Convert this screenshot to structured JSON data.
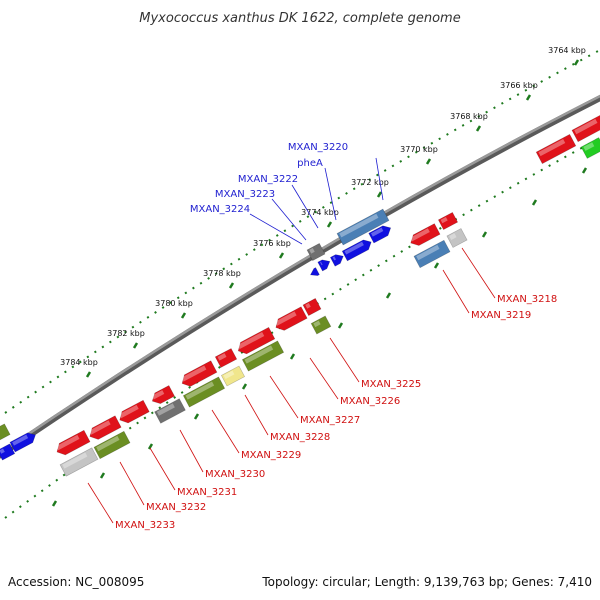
{
  "title": "Myxococcus xanthus DK 1622, complete genome",
  "footer": {
    "accession": "Accession: NC_008095",
    "stats": "Topology: circular; Length: 9,139,763 bp; Genes: 7,410"
  },
  "ticks": [
    {
      "label": "3764 kbp"
    },
    {
      "label": "3766 kbp"
    },
    {
      "label": "3768 kbp"
    },
    {
      "label": "3770 kbp"
    },
    {
      "label": "3772 kbp"
    },
    {
      "label": "3774 kbp"
    },
    {
      "label": "3776 kbp"
    },
    {
      "label": "3778 kbp"
    },
    {
      "label": "3780 kbp"
    },
    {
      "label": "3782 kbp"
    },
    {
      "label": "3784 kbp"
    }
  ],
  "labels_forward": [
    {
      "text": "MXAN_3220"
    },
    {
      "text": "pheA"
    },
    {
      "text": "MXAN_3222"
    },
    {
      "text": "MXAN_3223"
    },
    {
      "text": "MXAN_3224"
    }
  ],
  "labels_reverse": [
    {
      "text": "MXAN_3218"
    },
    {
      "text": "MXAN_3219"
    },
    {
      "text": "MXAN_3225"
    },
    {
      "text": "MXAN_3226"
    },
    {
      "text": "MXAN_3227"
    },
    {
      "text": "MXAN_3228"
    },
    {
      "text": "MXAN_3229"
    },
    {
      "text": "MXAN_3230"
    },
    {
      "text": "MXAN_3231"
    },
    {
      "text": "MXAN_3232"
    },
    {
      "text": "MXAN_3233"
    }
  ],
  "colors": {
    "backbone": "#7a7a7a",
    "tick_green": "#1f7a1f",
    "forward_label": "#1f1fd0",
    "reverse_label": "#d01010",
    "red": "#e0121a",
    "blue": "#1010e0",
    "steel": "#4a7fb5",
    "olive": "#6b8e23",
    "gray": "#707070",
    "light_gray": "#c4c4c4",
    "pale_yellow": "#f0e68c",
    "green": "#22cc22"
  }
}
